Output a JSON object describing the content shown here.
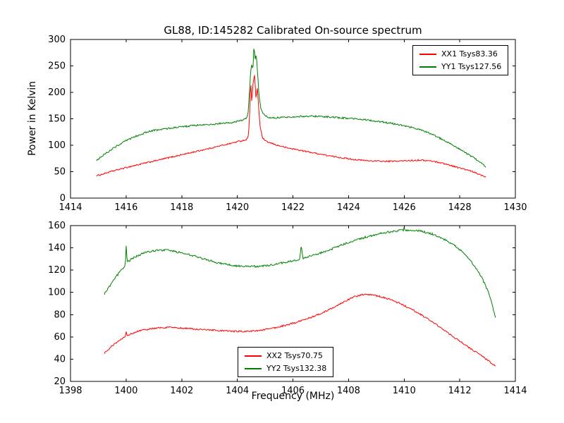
{
  "title": "GL88, ID:145282 Calibrated On-source spectrum",
  "axis_labels": {
    "y_top": "Power in Kelvin",
    "x_bottom": "Frequency (MHz)"
  },
  "colors": {
    "xx": "#ff0000",
    "yy": "#008000"
  },
  "chart_data": [
    {
      "type": "line",
      "title": "GL88, ID:145282 Calibrated On-source spectrum",
      "ylabel": "Power in Kelvin",
      "xlim": [
        1414,
        1430
      ],
      "ylim": [
        0,
        300
      ],
      "xticks": [
        1414,
        1416,
        1418,
        1420,
        1422,
        1424,
        1426,
        1428,
        1430
      ],
      "yticks": [
        0,
        50,
        100,
        150,
        200,
        250,
        300
      ],
      "grid": false,
      "legend_position": "upper right",
      "series": [
        {
          "name": "XX1 Tsys83.36",
          "color": "#ff0000",
          "noise": 1.3,
          "points": [
            [
              1414.92,
              42
            ],
            [
              1415.2,
              46
            ],
            [
              1415.5,
              51
            ],
            [
              1415.8,
              55
            ],
            [
              1416.1,
              59
            ],
            [
              1416.5,
              64
            ],
            [
              1417.0,
              70
            ],
            [
              1417.5,
              76
            ],
            [
              1418.0,
              82
            ],
            [
              1418.5,
              88
            ],
            [
              1419.0,
              94
            ],
            [
              1419.4,
              99
            ],
            [
              1419.8,
              104
            ],
            [
              1420.1,
              108
            ],
            [
              1420.3,
              110
            ],
            [
              1420.38,
              113
            ],
            [
              1420.43,
              140
            ],
            [
              1420.48,
              225
            ],
            [
              1420.52,
              180
            ],
            [
              1420.57,
              220
            ],
            [
              1420.62,
              232
            ],
            [
              1420.67,
              190
            ],
            [
              1420.72,
              208
            ],
            [
              1420.77,
              170
            ],
            [
              1420.82,
              135
            ],
            [
              1420.9,
              115
            ],
            [
              1421.0,
              108
            ],
            [
              1421.2,
              104
            ],
            [
              1421.5,
              99
            ],
            [
              1421.8,
              95
            ],
            [
              1422.2,
              91
            ],
            [
              1422.6,
              87
            ],
            [
              1423.0,
              83
            ],
            [
              1423.4,
              79
            ],
            [
              1423.8,
              76
            ],
            [
              1424.2,
              73
            ],
            [
              1424.6,
              71
            ],
            [
              1425.0,
              70
            ],
            [
              1425.4,
              69.5
            ],
            [
              1425.8,
              70
            ],
            [
              1426.2,
              71
            ],
            [
              1426.6,
              72
            ],
            [
              1427.0,
              70
            ],
            [
              1427.3,
              67
            ],
            [
              1427.6,
              63
            ],
            [
              1428.0,
              57
            ],
            [
              1428.4,
              51
            ],
            [
              1428.7,
              45
            ],
            [
              1428.95,
              40
            ]
          ]
        },
        {
          "name": "YY1 Tsys127.56",
          "color": "#008000",
          "noise": 1.6,
          "points": [
            [
              1414.92,
              71
            ],
            [
              1415.2,
              82
            ],
            [
              1415.5,
              93
            ],
            [
              1415.8,
              103
            ],
            [
              1416.1,
              111
            ],
            [
              1416.4,
              118
            ],
            [
              1416.7,
              124
            ],
            [
              1417.0,
              128
            ],
            [
              1417.4,
              131
            ],
            [
              1417.8,
              134
            ],
            [
              1418.2,
              136
            ],
            [
              1418.6,
              138
            ],
            [
              1419.0,
              139
            ],
            [
              1419.4,
              141
            ],
            [
              1419.8,
              143
            ],
            [
              1420.1,
              146
            ],
            [
              1420.3,
              150
            ],
            [
              1420.38,
              156
            ],
            [
              1420.43,
              195
            ],
            [
              1420.48,
              240
            ],
            [
              1420.52,
              255
            ],
            [
              1420.56,
              238
            ],
            [
              1420.6,
              293
            ],
            [
              1420.64,
              260
            ],
            [
              1420.68,
              272
            ],
            [
              1420.73,
              235
            ],
            [
              1420.78,
              195
            ],
            [
              1420.85,
              168
            ],
            [
              1420.95,
              158
            ],
            [
              1421.1,
              153
            ],
            [
              1421.4,
              152
            ],
            [
              1421.8,
              153
            ],
            [
              1422.2,
              154.5
            ],
            [
              1422.6,
              155
            ],
            [
              1423.0,
              154.5
            ],
            [
              1423.4,
              153
            ],
            [
              1423.8,
              151.5
            ],
            [
              1424.2,
              150
            ],
            [
              1424.6,
              148
            ],
            [
              1425.0,
              145.5
            ],
            [
              1425.4,
              142.5
            ],
            [
              1425.8,
              139
            ],
            [
              1426.2,
              134.5
            ],
            [
              1426.6,
              129
            ],
            [
              1427.0,
              121
            ],
            [
              1427.3,
              113
            ],
            [
              1427.6,
              105
            ],
            [
              1427.9,
              96
            ],
            [
              1428.2,
              86
            ],
            [
              1428.5,
              76
            ],
            [
              1428.75,
              67
            ],
            [
              1428.95,
              58
            ]
          ]
        }
      ]
    },
    {
      "type": "line",
      "xlabel": "Frequency (MHz)",
      "xlim": [
        1398,
        1414
      ],
      "ylim": [
        20,
        160
      ],
      "xticks": [
        1398,
        1400,
        1402,
        1404,
        1406,
        1408,
        1410,
        1412,
        1414
      ],
      "yticks": [
        20,
        40,
        60,
        80,
        100,
        120,
        140,
        160
      ],
      "grid": false,
      "legend_position": "lower center",
      "series": [
        {
          "name": "XX2 Tsys70.75",
          "color": "#ff0000",
          "noise": 0.7,
          "points": [
            [
              1399.2,
              45
            ],
            [
              1399.45,
              51
            ],
            [
              1399.7,
              56
            ],
            [
              1399.9,
              59
            ],
            [
              1399.97,
              60
            ],
            [
              1400.0,
              66
            ],
            [
              1400.03,
              61
            ],
            [
              1400.2,
              63
            ],
            [
              1400.5,
              65.5
            ],
            [
              1400.8,
              67
            ],
            [
              1401.1,
              68
            ],
            [
              1401.5,
              68.5
            ],
            [
              1401.9,
              68
            ],
            [
              1402.3,
              67.5
            ],
            [
              1402.7,
              66.5
            ],
            [
              1403.1,
              66
            ],
            [
              1403.5,
              65.5
            ],
            [
              1403.9,
              65
            ],
            [
              1404.3,
              65
            ],
            [
              1404.7,
              65.5
            ],
            [
              1405.1,
              67
            ],
            [
              1405.5,
              69
            ],
            [
              1405.9,
              71.5
            ],
            [
              1406.3,
              74.5
            ],
            [
              1406.7,
              78
            ],
            [
              1407.1,
              82
            ],
            [
              1407.5,
              87
            ],
            [
              1407.9,
              92.5
            ],
            [
              1408.2,
              96
            ],
            [
              1408.5,
              98
            ],
            [
              1408.8,
              98
            ],
            [
              1409.1,
              96.5
            ],
            [
              1409.5,
              93.5
            ],
            [
              1409.9,
              89.5
            ],
            [
              1410.3,
              84.5
            ],
            [
              1410.7,
              78.5
            ],
            [
              1411.1,
              72
            ],
            [
              1411.5,
              65
            ],
            [
              1411.9,
              58
            ],
            [
              1412.3,
              51
            ],
            [
              1412.7,
              44.5
            ],
            [
              1413.0,
              39
            ],
            [
              1413.3,
              33.5
            ]
          ]
        },
        {
          "name": "YY2 Tsys132.38",
          "color": "#008000",
          "noise": 0.9,
          "points": [
            [
              1399.2,
              98
            ],
            [
              1399.45,
              107
            ],
            [
              1399.7,
              116
            ],
            [
              1399.9,
              122
            ],
            [
              1399.97,
              124
            ],
            [
              1400.0,
              143
            ],
            [
              1400.04,
              127
            ],
            [
              1400.2,
              130
            ],
            [
              1400.5,
              134
            ],
            [
              1400.8,
              136.5
            ],
            [
              1401.1,
              137.5
            ],
            [
              1401.4,
              138
            ],
            [
              1401.7,
              137
            ],
            [
              1402.0,
              135.5
            ],
            [
              1402.4,
              133
            ],
            [
              1402.8,
              130
            ],
            [
              1403.2,
              127
            ],
            [
              1403.6,
              125
            ],
            [
              1404.0,
              123.8
            ],
            [
              1404.4,
              123.3
            ],
            [
              1404.8,
              123.5
            ],
            [
              1405.2,
              124.5
            ],
            [
              1405.6,
              126.5
            ],
            [
              1406.0,
              128.5
            ],
            [
              1406.25,
              130
            ],
            [
              1406.3,
              143
            ],
            [
              1406.36,
              130.8
            ],
            [
              1406.6,
              132.5
            ],
            [
              1407.0,
              135.5
            ],
            [
              1407.4,
              139
            ],
            [
              1407.8,
              143
            ],
            [
              1408.2,
              146.5
            ],
            [
              1408.6,
              149.5
            ],
            [
              1409.0,
              152
            ],
            [
              1409.4,
              154
            ],
            [
              1409.8,
              155.5
            ],
            [
              1409.97,
              156
            ],
            [
              1410.0,
              158
            ],
            [
              1410.05,
              156
            ],
            [
              1410.3,
              156
            ],
            [
              1410.6,
              155
            ],
            [
              1411.0,
              152.5
            ],
            [
              1411.3,
              149.5
            ],
            [
              1411.6,
              145.5
            ],
            [
              1411.9,
              140.5
            ],
            [
              1412.2,
              134
            ],
            [
              1412.5,
              125
            ],
            [
              1412.8,
              113
            ],
            [
              1413.05,
              99
            ],
            [
              1413.3,
              76
            ]
          ]
        }
      ]
    }
  ]
}
